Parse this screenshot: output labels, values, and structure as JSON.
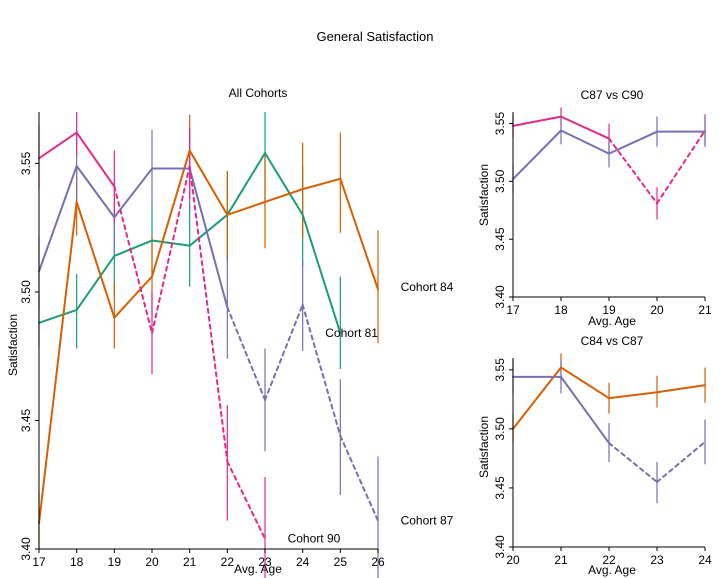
{
  "figure_title": "General Satisfaction",
  "colors": {
    "cohort81": "#1b9e77",
    "cohort84": "#d95f02",
    "cohort87": "#7570b3",
    "cohort90": "#e7298a"
  },
  "chart_data": [
    {
      "type": "line",
      "title": "All Cohorts",
      "xlabel": "Avg. Age",
      "ylabel": "Satisfaction",
      "xlim": [
        17,
        26
      ],
      "ylim": [
        3.4,
        3.57
      ],
      "xticks": [
        "17",
        "18",
        "19",
        "20",
        "21",
        "22",
        "23",
        "24",
        "25",
        "26"
      ],
      "yticks": [
        "3.40",
        "3.45",
        "3.50",
        "3.55"
      ],
      "series": [
        {
          "name": "Cohort 81",
          "color_key": "cohort81",
          "points": [
            {
              "x": 17,
              "y": 3.488,
              "lo": 3.478,
              "hi": 3.499,
              "dashed_from_prev": false
            },
            {
              "x": 18,
              "y": 3.493,
              "lo": 3.478,
              "hi": 3.507,
              "dashed_from_prev": false
            },
            {
              "x": 19,
              "y": 3.514,
              "lo": 3.498,
              "hi": 3.529,
              "dashed_from_prev": false
            },
            {
              "x": 20,
              "y": 3.52,
              "lo": 3.507,
              "hi": 3.534,
              "dashed_from_prev": false
            },
            {
              "x": 21,
              "y": 3.518,
              "lo": 3.502,
              "hi": 3.534,
              "dashed_from_prev": false
            },
            {
              "x": 22,
              "y": 3.53,
              "lo": 3.512,
              "hi": 3.547,
              "dashed_from_prev": false
            },
            {
              "x": 23,
              "y": 3.554,
              "lo": 3.533,
              "hi": 3.57,
              "dashed_from_prev": false
            },
            {
              "x": 24,
              "y": 3.53,
              "lo": 3.51,
              "hi": 3.549,
              "dashed_from_prev": false
            },
            {
              "x": 25,
              "y": 3.484,
              "lo": 3.47,
              "hi": 3.506,
              "dashed_from_prev": false
            }
          ]
        },
        {
          "name": "Cohort 84",
          "color_key": "cohort84",
          "points": [
            {
              "x": 17,
              "y": 3.41,
              "lo": 3.4,
              "hi": 3.422,
              "dashed_from_prev": false
            },
            {
              "x": 18,
              "y": 3.535,
              "lo": 3.522,
              "hi": 3.548,
              "dashed_from_prev": false
            },
            {
              "x": 19,
              "y": 3.49,
              "lo": 3.478,
              "hi": 3.504,
              "dashed_from_prev": false
            },
            {
              "x": 20,
              "y": 3.506,
              "lo": 3.49,
              "hi": 3.522,
              "dashed_from_prev": false
            },
            {
              "x": 21,
              "y": 3.555,
              "lo": 3.538,
              "hi": 3.569,
              "dashed_from_prev": false
            },
            {
              "x": 22,
              "y": 3.53,
              "lo": 3.512,
              "hi": 3.547,
              "dashed_from_prev": false
            },
            {
              "x": 23,
              "y": 3.535,
              "lo": 3.517,
              "hi": 3.553,
              "dashed_from_prev": false
            },
            {
              "x": 24,
              "y": 3.54,
              "lo": 3.521,
              "hi": 3.558,
              "dashed_from_prev": false
            },
            {
              "x": 25,
              "y": 3.544,
              "lo": 3.523,
              "hi": 3.562,
              "dashed_from_prev": false
            },
            {
              "x": 26,
              "y": 3.501,
              "lo": 3.48,
              "hi": 3.524,
              "dashed_from_prev": false
            }
          ]
        },
        {
          "name": "Cohort 87",
          "color_key": "cohort87",
          "points": [
            {
              "x": 17,
              "y": 3.508,
              "lo": 3.493,
              "hi": 3.522,
              "dashed_from_prev": false
            },
            {
              "x": 18,
              "y": 3.549,
              "lo": 3.534,
              "hi": 3.563,
              "dashed_from_prev": false
            },
            {
              "x": 19,
              "y": 3.529,
              "lo": 3.515,
              "hi": 3.543,
              "dashed_from_prev": false
            },
            {
              "x": 20,
              "y": 3.548,
              "lo": 3.533,
              "hi": 3.563,
              "dashed_from_prev": false
            },
            {
              "x": 21,
              "y": 3.548,
              "lo": 3.532,
              "hi": 3.563,
              "dashed_from_prev": false
            },
            {
              "x": 22,
              "y": 3.494,
              "lo": 3.474,
              "hi": 3.514,
              "dashed_from_prev": false
            },
            {
              "x": 23,
              "y": 3.458,
              "lo": 3.438,
              "hi": 3.478,
              "dashed_from_prev": true
            },
            {
              "x": 24,
              "y": 3.495,
              "lo": 3.477,
              "hi": 3.512,
              "dashed_from_prev": true
            },
            {
              "x": 25,
              "y": 3.444,
              "lo": 3.421,
              "hi": 3.466,
              "dashed_from_prev": true
            },
            {
              "x": 26,
              "y": 3.411,
              "lo": 3.386,
              "hi": 3.436,
              "dashed_from_prev": true
            }
          ]
        },
        {
          "name": "Cohort 90",
          "color_key": "cohort90",
          "points": [
            {
              "x": 17,
              "y": 3.552,
              "lo": 3.54,
              "hi": 3.565,
              "dashed_from_prev": false
            },
            {
              "x": 18,
              "y": 3.562,
              "lo": 3.553,
              "hi": 3.57,
              "dashed_from_prev": false
            },
            {
              "x": 19,
              "y": 3.541,
              "lo": 3.527,
              "hi": 3.555,
              "dashed_from_prev": false
            },
            {
              "x": 20,
              "y": 3.484,
              "lo": 3.468,
              "hi": 3.5,
              "dashed_from_prev": true
            },
            {
              "x": 21,
              "y": 3.549,
              "lo": 3.536,
              "hi": 3.564,
              "dashed_from_prev": true
            },
            {
              "x": 22,
              "y": 3.434,
              "lo": 3.411,
              "hi": 3.456,
              "dashed_from_prev": true
            },
            {
              "x": 23,
              "y": 3.404,
              "lo": 3.38,
              "hi": 3.428,
              "dashed_from_prev": true
            }
          ]
        }
      ],
      "annotations": [
        {
          "text": "Cohort 84",
          "x": 26.6,
          "y": 3.502
        },
        {
          "text": "Cohort 81",
          "x": 24.6,
          "y": 3.484
        },
        {
          "text": "Cohort 87",
          "x": 26.6,
          "y": 3.411
        },
        {
          "text": "Cohort 90",
          "x": 23.6,
          "y": 3.404
        }
      ]
    },
    {
      "type": "line",
      "title": "C87 vs C90",
      "xlabel": "Avg. Age",
      "ylabel": "Satisfaction",
      "xlim": [
        17,
        21
      ],
      "ylim": [
        3.4,
        3.56
      ],
      "xticks": [
        "17",
        "18",
        "19",
        "20",
        "21"
      ],
      "yticks": [
        "3.40",
        "3.45",
        "3.50",
        "3.55"
      ],
      "series": [
        {
          "name": "Cohort 90",
          "color_key": "cohort90",
          "points": [
            {
              "x": 17,
              "y": 3.548,
              "lo": 3.538,
              "hi": 3.558,
              "dashed_from_prev": false
            },
            {
              "x": 18,
              "y": 3.556,
              "lo": 3.547,
              "hi": 3.564,
              "dashed_from_prev": false
            },
            {
              "x": 19,
              "y": 3.537,
              "lo": 3.525,
              "hi": 3.55,
              "dashed_from_prev": false
            },
            {
              "x": 20,
              "y": 3.481,
              "lo": 3.467,
              "hi": 3.495,
              "dashed_from_prev": true
            },
            {
              "x": 21,
              "y": 3.544,
              "lo": 3.53,
              "hi": 3.558,
              "dashed_from_prev": true
            }
          ]
        },
        {
          "name": "Cohort 87",
          "color_key": "cohort87",
          "points": [
            {
              "x": 17,
              "y": 3.502,
              "lo": 3.49,
              "hi": 3.515,
              "dashed_from_prev": false
            },
            {
              "x": 18,
              "y": 3.544,
              "lo": 3.532,
              "hi": 3.556,
              "dashed_from_prev": false
            },
            {
              "x": 19,
              "y": 3.524,
              "lo": 3.512,
              "hi": 3.536,
              "dashed_from_prev": false
            },
            {
              "x": 20,
              "y": 3.543,
              "lo": 3.53,
              "hi": 3.556,
              "dashed_from_prev": false
            },
            {
              "x": 21,
              "y": 3.543,
              "lo": 3.53,
              "hi": 3.556,
              "dashed_from_prev": false
            }
          ]
        }
      ]
    },
    {
      "type": "line",
      "title": "C84 vs C87",
      "xlabel": "Avg. Age",
      "ylabel": "Satisfaction",
      "xlim": [
        20,
        24
      ],
      "ylim": [
        3.4,
        3.56
      ],
      "xticks": [
        "20",
        "21",
        "22",
        "23",
        "24"
      ],
      "yticks": [
        "3.40",
        "3.45",
        "3.50",
        "3.55"
      ],
      "series": [
        {
          "name": "Cohort 84",
          "color_key": "cohort84",
          "points": [
            {
              "x": 20,
              "y": 3.5,
              "lo": 3.488,
              "hi": 3.512,
              "dashed_from_prev": false
            },
            {
              "x": 21,
              "y": 3.552,
              "lo": 3.54,
              "hi": 3.564,
              "dashed_from_prev": false
            },
            {
              "x": 22,
              "y": 3.526,
              "lo": 3.513,
              "hi": 3.539,
              "dashed_from_prev": false
            },
            {
              "x": 23,
              "y": 3.531,
              "lo": 3.518,
              "hi": 3.545,
              "dashed_from_prev": false
            },
            {
              "x": 24,
              "y": 3.537,
              "lo": 3.522,
              "hi": 3.552,
              "dashed_from_prev": false
            }
          ]
        },
        {
          "name": "Cohort 87",
          "color_key": "cohort87",
          "points": [
            {
              "x": 20,
              "y": 3.544,
              "lo": 3.53,
              "hi": 3.558,
              "dashed_from_prev": false
            },
            {
              "x": 21,
              "y": 3.544,
              "lo": 3.53,
              "hi": 3.558,
              "dashed_from_prev": false
            },
            {
              "x": 22,
              "y": 3.488,
              "lo": 3.472,
              "hi": 3.505,
              "dashed_from_prev": false
            },
            {
              "x": 23,
              "y": 3.455,
              "lo": 3.437,
              "hi": 3.472,
              "dashed_from_prev": true
            },
            {
              "x": 24,
              "y": 3.489,
              "lo": 3.47,
              "hi": 3.508,
              "dashed_from_prev": true
            }
          ]
        }
      ]
    }
  ]
}
